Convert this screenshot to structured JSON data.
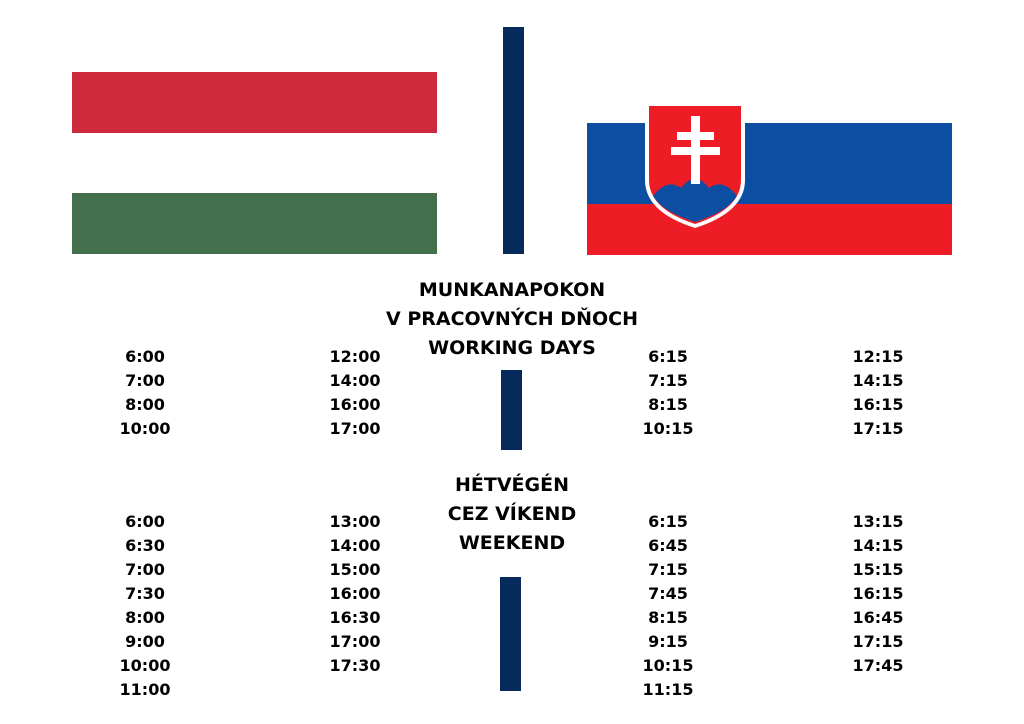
{
  "working_days": {
    "heading": [
      "MUNKANAPOKON",
      "V PRACOVNÝCH DŇOCH",
      "WORKING DAYS"
    ],
    "hungary": [
      [
        "6:00",
        "7:00",
        "8:00",
        "10:00"
      ],
      [
        "12:00",
        "14:00",
        "16:00",
        "17:00"
      ]
    ],
    "slovakia": [
      [
        "6:15",
        "7:15",
        "8:15",
        "10:15"
      ],
      [
        "12:15",
        "14:15",
        "16:15",
        "17:15"
      ]
    ]
  },
  "weekend": {
    "heading": [
      "HÉTVÉGÉN",
      "CEZ VÍKEND",
      "WEEKEND"
    ],
    "hungary": [
      [
        "6:00",
        "6:30",
        "7:00",
        "7:30",
        "8:00",
        "9:00",
        "10:00",
        "11:00"
      ],
      [
        "13:00",
        "14:00",
        "15:00",
        "16:00",
        "16:30",
        "17:00",
        "17:30"
      ]
    ],
    "slovakia": [
      [
        "6:15",
        "6:45",
        "7:15",
        "7:45",
        "8:15",
        "9:15",
        "10:15",
        "11:15"
      ],
      [
        "13:15",
        "14:15",
        "15:15",
        "16:15",
        "16:45",
        "17:15",
        "17:45"
      ]
    ]
  }
}
